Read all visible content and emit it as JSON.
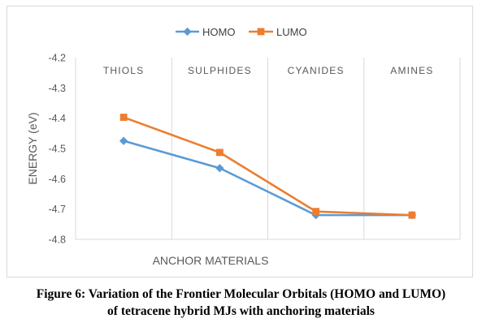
{
  "chart_data": {
    "type": "line",
    "categories": [
      "THIOLS",
      "SULPHIDES",
      "CYANIDES",
      "AMINES"
    ],
    "series": [
      {
        "name": "HOMO",
        "values": [
          -4.475,
          -4.565,
          -4.72,
          -4.72
        ],
        "color": "#5b9bd5",
        "marker": "diamond"
      },
      {
        "name": "LUMO",
        "values": [
          -4.397,
          -4.513,
          -4.708,
          -4.72
        ],
        "color": "#ed7d31",
        "marker": "square"
      }
    ],
    "ylim": [
      -4.8,
      -4.2
    ],
    "ytick_step": 0.1,
    "ytick_labels": [
      "-4.2",
      "-4.3",
      "-4.4",
      "-4.5",
      "-4.6",
      "-4.7",
      "-4.8"
    ],
    "xlabel": "ANCHOR MATERIALS",
    "ylabel": "ENERGY (eV)",
    "legend_position": "top-center",
    "category_labels_position": "top",
    "grid": "vertical"
  },
  "caption": {
    "line1": "Figure 6: Variation of the Frontier Molecular Orbitals (HOMO and LUMO)",
    "line2": "of tetracene hybrid MJs with anchoring materials"
  }
}
